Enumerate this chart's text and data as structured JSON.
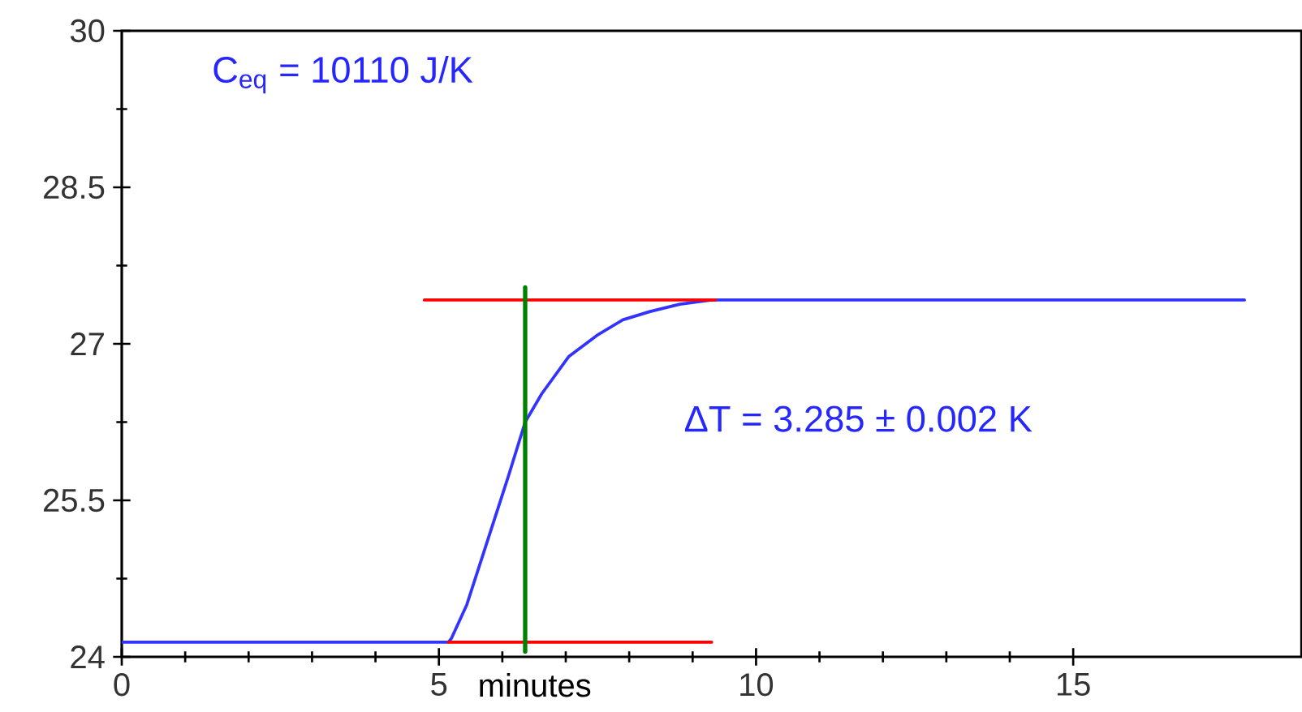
{
  "chart_data": {
    "type": "line",
    "xlabel": "minutes",
    "annotations": [
      "C$_{eq}$ = 10110 J/K",
      "ΔT = 3.285 ± 0.002 K"
    ],
    "xlim": [
      0,
      18.6
    ],
    "ylim": [
      24,
      30
    ],
    "xticks": [
      0,
      5,
      10,
      15
    ],
    "yticks": [
      24,
      25.5,
      27,
      28.5,
      30
    ],
    "marker": "none",
    "series": [
      {
        "color": "#3333ff",
        "x": [
          0,
          5.15,
          5.2,
          5.44,
          5.77,
          6.1,
          6.36,
          6.62,
          7.05,
          7.49,
          7.9,
          8.33,
          8.8,
          9.3,
          12,
          15,
          17.7
        ],
        "values": [
          24.14,
          24.14,
          24.18,
          24.5,
          25.12,
          25.74,
          26.25,
          26.52,
          26.88,
          27.08,
          27.23,
          27.31,
          27.38,
          27.42,
          27.42,
          27.42,
          27.42
        ]
      },
      {
        "color": "#ff0000",
        "x": [
          4.77,
          9.36
        ],
        "values": [
          27.42,
          27.42
        ]
      },
      {
        "color": "#ff0000",
        "x": [
          5.15,
          9.3
        ],
        "values": [
          24.14,
          24.14
        ]
      },
      {
        "color": "#008000",
        "x": [
          6.36,
          6.36
        ],
        "values": [
          24.05,
          27.54
        ]
      }
    ]
  }
}
